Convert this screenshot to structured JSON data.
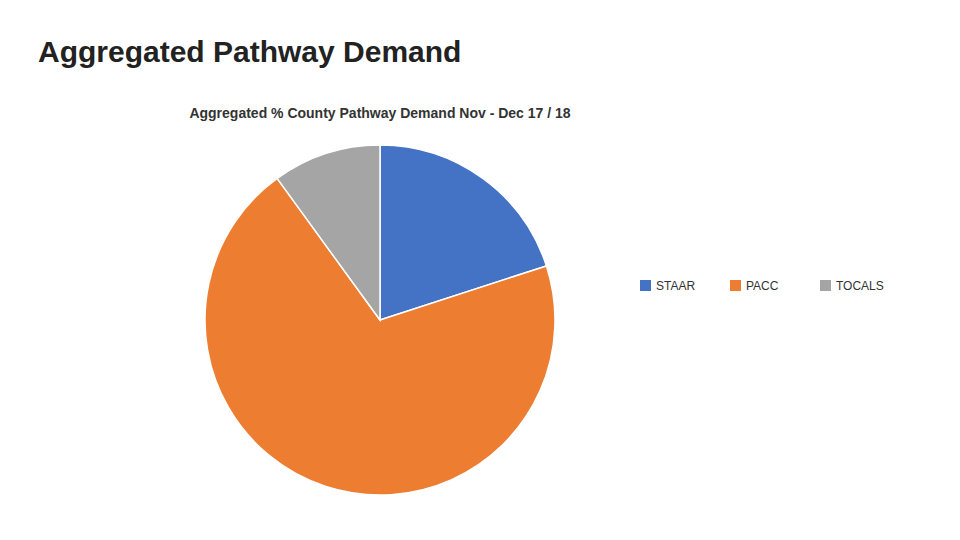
{
  "chart_data": {
    "type": "pie",
    "title": "Aggregated Pathway Demand",
    "subtitle": "Aggregated % County Pathway Demand Nov - Dec 17 / 18",
    "categories": [
      "STAAR",
      "PACC",
      "TOCALS"
    ],
    "values": [
      20,
      70,
      10
    ],
    "colors": [
      "#4472C4",
      "#ED7D31",
      "#A5A5A5"
    ],
    "legend": "right"
  }
}
